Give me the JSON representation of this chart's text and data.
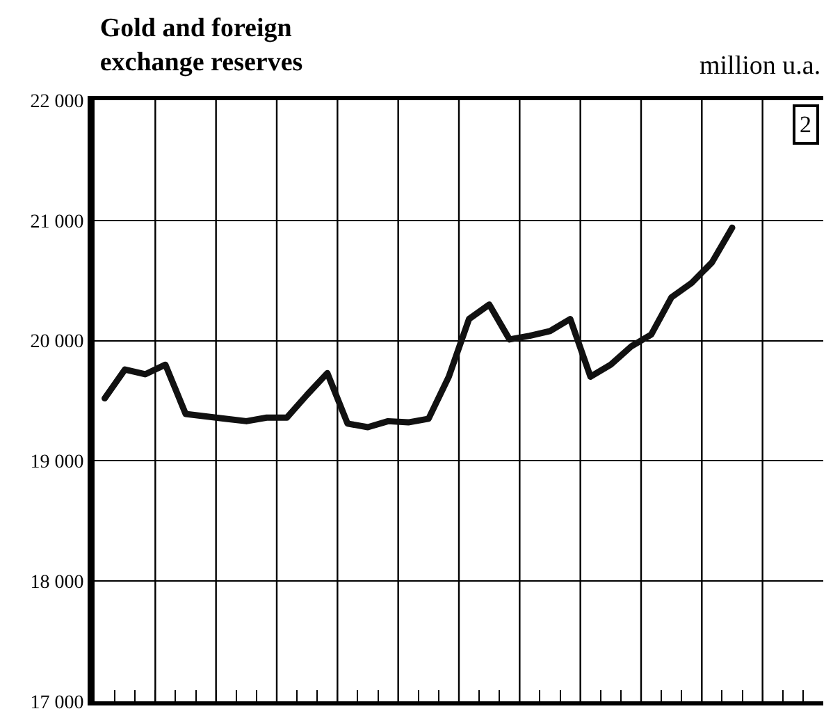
{
  "chart_data": {
    "type": "line",
    "title": "Gold and foreign\nexchange reserves",
    "annotations": [
      "million u.a.",
      "2"
    ],
    "categories": [
      null,
      null,
      null,
      null,
      null,
      null,
      null,
      null,
      null,
      null,
      null,
      null,
      null,
      null,
      null,
      null,
      null,
      null,
      null,
      null,
      null,
      null,
      null,
      null,
      null,
      null,
      null,
      null,
      null,
      null,
      null,
      null,
      null,
      null,
      null,
      null
    ],
    "series": [
      {
        "color": "#111111",
        "values": [
          19520,
          19760,
          19720,
          19800,
          19390,
          19370,
          19350,
          19330,
          19360,
          19360,
          19550,
          19730,
          19310,
          19280,
          19330,
          19320,
          19350,
          19700,
          20180,
          20300,
          20010,
          20040,
          20080,
          20180,
          19700,
          19800,
          19950,
          20050,
          20360,
          20480,
          20650,
          20940,
          null,
          null,
          null,
          null
        ]
      }
    ],
    "ylim": [
      17000,
      22000
    ],
    "yticks": [
      {
        "value": 17000,
        "label": "17 000"
      },
      {
        "value": 18000,
        "label": "18 000"
      },
      {
        "value": 19000,
        "label": "19 000"
      },
      {
        "value": 20000,
        "label": "20 000"
      },
      {
        "value": 21000,
        "label": "21 000"
      },
      {
        "value": 22000,
        "label": "22 000"
      }
    ],
    "grid": true,
    "marker": "none",
    "line_style": "solid"
  }
}
